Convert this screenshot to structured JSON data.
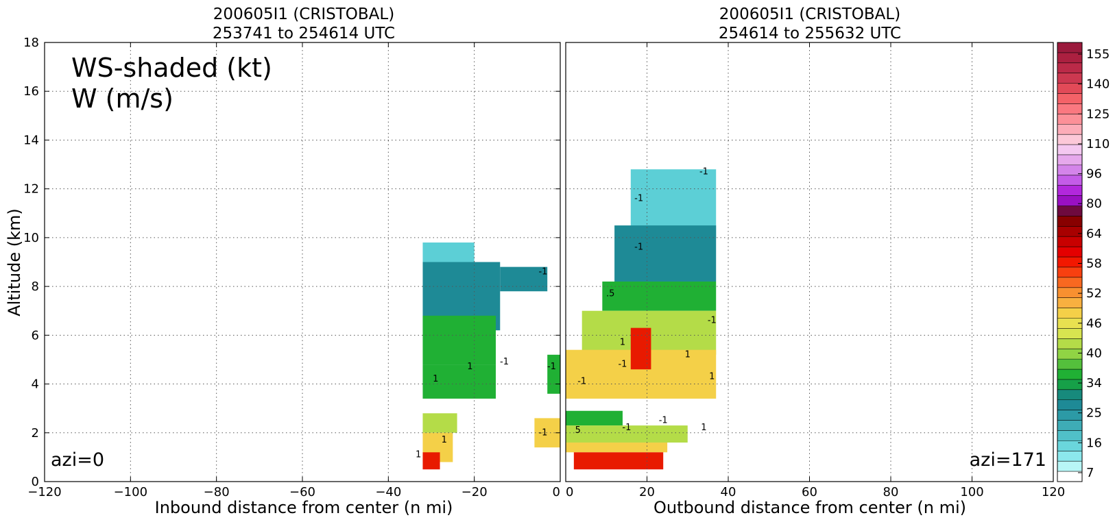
{
  "left_panel": {
    "title_line1": "200605I1 (CRISTOBAL)",
    "title_line2": "253741 to 254614 UTC",
    "overlay_line1": "WS-shaded (kt)",
    "overlay_line2": "W (m/s)",
    "azimuth_label": "azi=0",
    "xlabel": "Inbound distance from center (n mi)",
    "ylabel": "Altitude (km)"
  },
  "right_panel": {
    "title_line1": "200605I1 (CRISTOBAL)",
    "title_line2": "254614 to 255632 UTC",
    "azimuth_label": "azi=171",
    "xlabel": "Outbound distance from center (n mi)"
  },
  "chart_data": [
    {
      "type": "heatmap",
      "panel": "left",
      "xlim": [
        -120,
        0
      ],
      "ylim": [
        0,
        18
      ],
      "xticks": [
        "−120",
        "−100",
        "−80",
        "−60",
        "−40",
        "−20",
        "0"
      ],
      "yticks": [
        "0",
        "2",
        "4",
        "6",
        "8",
        "10",
        "12",
        "14",
        "16",
        "18"
      ],
      "grid": true,
      "grid_style": "dotted",
      "contour_labels": [
        {
          "text": "1",
          "x": -27,
          "y": 1.6
        },
        {
          "text": "1",
          "x": -21,
          "y": 4.6
        },
        {
          "text": "-1",
          "x": -13,
          "y": 4.8
        },
        {
          "text": "1",
          "x": -29,
          "y": 4.1
        },
        {
          "text": "-1",
          "x": -4,
          "y": 8.5
        },
        {
          "text": "-1",
          "x": -2,
          "y": 4.6
        },
        {
          "text": "-1",
          "x": -4,
          "y": 1.9
        },
        {
          "text": "1",
          "x": -33,
          "y": 1.0
        }
      ],
      "wind_regions": [
        {
          "band": "16",
          "x": [
            -32,
            -20
          ],
          "y": [
            9.0,
            9.8
          ]
        },
        {
          "band": "25",
          "x": [
            -32,
            -14
          ],
          "y": [
            6.2,
            9.0
          ]
        },
        {
          "band": "25",
          "x": [
            -14,
            -3
          ],
          "y": [
            7.8,
            8.8
          ]
        },
        {
          "band": "34",
          "x": [
            -32,
            -15
          ],
          "y": [
            4.8,
            6.8
          ]
        },
        {
          "band": "34",
          "x": [
            -32,
            -15
          ],
          "y": [
            3.4,
            4.8
          ]
        },
        {
          "band": "34",
          "x": [
            -3,
            0
          ],
          "y": [
            3.6,
            5.2
          ]
        },
        {
          "band": "40",
          "x": [
            -32,
            -24
          ],
          "y": [
            2.0,
            2.8
          ]
        },
        {
          "band": "46",
          "x": [
            -32,
            -25
          ],
          "y": [
            0.8,
            2.0
          ]
        },
        {
          "band": "52",
          "x": [
            -32,
            -28
          ],
          "y": [
            0.5,
            1.2
          ]
        },
        {
          "band": "46",
          "x": [
            -6,
            0
          ],
          "y": [
            1.4,
            2.6
          ]
        }
      ]
    },
    {
      "type": "heatmap",
      "panel": "right",
      "xlim": [
        0,
        120
      ],
      "ylim": [
        0,
        18
      ],
      "xticks": [
        "0",
        "20",
        "40",
        "60",
        "80",
        "100",
        "120"
      ],
      "grid": true,
      "grid_style": "dotted",
      "contour_labels": [
        {
          "text": "-1",
          "x": 18,
          "y": 11.5
        },
        {
          "text": "-1",
          "x": 18,
          "y": 9.5
        },
        {
          "text": "-1",
          "x": 34,
          "y": 12.6
        },
        {
          "text": ".5",
          "x": 11,
          "y": 7.6
        },
        {
          "text": "-1",
          "x": 14,
          "y": 4.7
        },
        {
          "text": "-1",
          "x": 4,
          "y": 4.0
        },
        {
          "text": "1",
          "x": 14,
          "y": 5.6
        },
        {
          "text": "1",
          "x": 30,
          "y": 5.1
        },
        {
          "text": "1",
          "x": 36,
          "y": 4.2
        },
        {
          "text": "-1",
          "x": 36,
          "y": 6.5
        },
        {
          "text": "5",
          "x": 3,
          "y": 2.0
        },
        {
          "text": "-1",
          "x": 15,
          "y": 2.1
        },
        {
          "text": "-1",
          "x": 24,
          "y": 2.4
        },
        {
          "text": "1",
          "x": 34,
          "y": 2.1
        }
      ],
      "wind_regions": [
        {
          "band": "16",
          "x": [
            16,
            37
          ],
          "y": [
            10.0,
            12.8
          ]
        },
        {
          "band": "25",
          "x": [
            12,
            37
          ],
          "y": [
            8.2,
            10.5
          ]
        },
        {
          "band": "34",
          "x": [
            9,
            37
          ],
          "y": [
            7.0,
            8.2
          ]
        },
        {
          "band": "40",
          "x": [
            4,
            37
          ],
          "y": [
            5.2,
            7.0
          ]
        },
        {
          "band": "46",
          "x": [
            0,
            37
          ],
          "y": [
            3.4,
            5.4
          ]
        },
        {
          "band": "52",
          "x": [
            16,
            21
          ],
          "y": [
            4.6,
            6.3
          ]
        },
        {
          "band": "34",
          "x": [
            0,
            14
          ],
          "y": [
            2.3,
            2.9
          ]
        },
        {
          "band": "40",
          "x": [
            0,
            30
          ],
          "y": [
            1.6,
            2.3
          ]
        },
        {
          "band": "46",
          "x": [
            0,
            25
          ],
          "y": [
            1.2,
            1.6
          ]
        },
        {
          "band": "52",
          "x": [
            2,
            24
          ],
          "y": [
            0.5,
            1.2
          ]
        }
      ]
    }
  ],
  "colorbar": {
    "labels": [
      "155",
      "140",
      "125",
      "110",
      "96",
      "80",
      "64",
      "58",
      "52",
      "46",
      "40",
      "34",
      "25",
      "16",
      "7"
    ],
    "bands": [
      {
        "label": "155",
        "colors": [
          "#9b1a3c",
          "#ab2040"
        ]
      },
      {
        "label": "140",
        "colors": [
          "#bb2a48",
          "#cc3850"
        ]
      },
      {
        "label": "125",
        "colors": [
          "#e24a58",
          "#f46268"
        ]
      },
      {
        "label": "110",
        "colors": [
          "#fa7880",
          "#fc9098"
        ]
      },
      {
        "label": "96",
        "colors": [
          "#fcacb8",
          "#fcc8d8"
        ]
      },
      {
        "label": "80",
        "colors": [
          "#f4c8f0",
          "#e6a8ec"
        ]
      },
      {
        "label": "64",
        "colors": [
          "#d484ea",
          "#c45ce8"
        ]
      },
      {
        "label": "58",
        "colors": [
          "#b228dc",
          "#9a10c2"
        ]
      },
      {
        "label": "52",
        "colors": [
          "#6e0a3e",
          "#880000"
        ]
      },
      {
        "label": "46",
        "colors": [
          "#a80000",
          "#c80000"
        ]
      },
      {
        "label": "40",
        "colors": [
          "#e40000",
          "#f21800"
        ]
      },
      {
        "label": "34",
        "colors": [
          "#f84010",
          "#f86820"
        ]
      },
      {
        "label": "25",
        "colors": [
          "#f89030",
          "#f8b040"
        ]
      },
      {
        "label": "16",
        "colors": [
          "#f4d048",
          "#e8e050"
        ]
      },
      {
        "label": "7",
        "colors": [
          "#d8e450",
          "#b4dc48"
        ]
      }
    ],
    "lower_bands": [
      "#90d444",
      "#54c03c",
      "#20b034",
      "#16a048",
      "#178a7c",
      "#1e8a96",
      "#2c9aa6",
      "#3eacb6",
      "#50c0c8",
      "#6ad6dc",
      "#8ce8ec",
      "#b8f6f6",
      "#ffffff"
    ]
  }
}
